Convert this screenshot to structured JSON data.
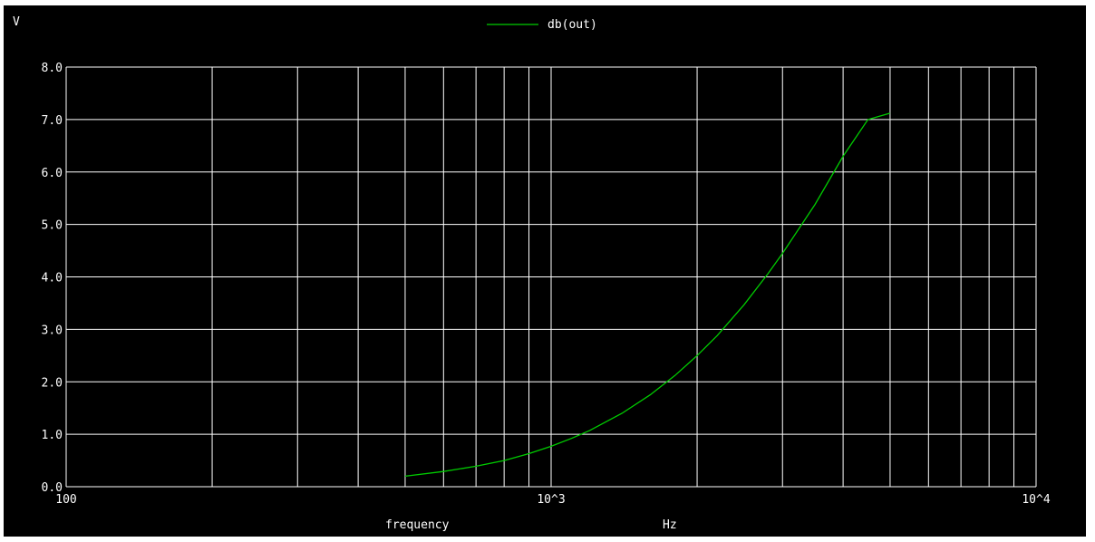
{
  "colors": {
    "background": "#000000",
    "grid": "#ffffff",
    "trace": "#00cc00",
    "text": "#ffffff"
  },
  "chart_data": {
    "type": "line",
    "ylabel": "V",
    "xlabel": "frequency",
    "xunit": "Hz",
    "xscale": "log",
    "xlim": [
      100,
      10000
    ],
    "ylim": [
      0,
      8
    ],
    "grid": true,
    "legend_position": "top-center",
    "x_tick_labels": [
      "100",
      "10^3",
      "10^4"
    ],
    "y_tick_labels": [
      "0.0",
      "1.0",
      "2.0",
      "3.0",
      "4.0",
      "5.0",
      "6.0",
      "7.0",
      "8.0"
    ],
    "series": [
      {
        "name": "db(out)",
        "color": "#00cc00",
        "x": [
          500,
          600,
          700,
          800,
          900,
          1000,
          1100,
          1200,
          1400,
          1600,
          1800,
          2000,
          2200,
          2500,
          2800,
          3000,
          3500,
          4000,
          4500,
          5000
        ],
        "y": [
          0.2,
          0.29,
          0.39,
          0.5,
          0.63,
          0.77,
          0.92,
          1.07,
          1.4,
          1.75,
          2.12,
          2.5,
          2.88,
          3.47,
          4.06,
          4.45,
          5.38,
          6.3,
          7.0,
          7.12
        ]
      }
    ]
  }
}
